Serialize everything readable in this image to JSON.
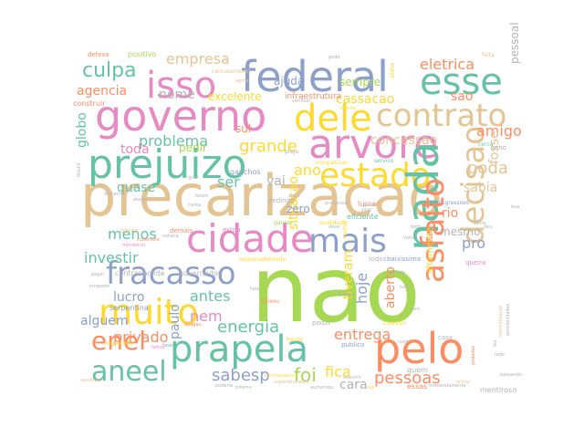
{
  "palette": {
    "pink": "#e78ac3",
    "blue": "#8da0cb",
    "green": "#66c2a5",
    "orange": "#fc8d62",
    "yellow": "#ffd92f",
    "lime": "#a6d854",
    "tan": "#e5c494",
    "grey": "#b3b3b3"
  },
  "words": [
    {
      "text": "nao",
      "color": "lime"
    },
    {
      "text": "precarizacao",
      "color": "tan"
    },
    {
      "text": "federal",
      "color": "blue"
    },
    {
      "text": "governo",
      "color": "pink"
    },
    {
      "text": "arvore",
      "color": "pink"
    },
    {
      "text": "prejuizo",
      "color": "green"
    },
    {
      "text": "dele",
      "color": "yellow"
    },
    {
      "text": "cidade",
      "color": "pink"
    },
    {
      "text": "isso",
      "color": "pink"
    },
    {
      "text": "esse",
      "color": "green"
    },
    {
      "text": "contrato",
      "color": "tan"
    },
    {
      "text": "estado",
      "color": "yellow"
    },
    {
      "text": "nada",
      "color": "green"
    },
    {
      "text": "fracasso",
      "color": "blue"
    },
    {
      "text": "prapela",
      "color": "green"
    },
    {
      "text": "muito",
      "color": "yellow"
    },
    {
      "text": "pelo",
      "color": "orange"
    },
    {
      "text": "mais",
      "color": "blue"
    },
    {
      "text": "decisao",
      "color": "tan"
    },
    {
      "text": "asfalto",
      "color": "orange"
    },
    {
      "text": "aneel",
      "color": "green"
    },
    {
      "text": "enel",
      "color": "orange"
    },
    {
      "text": "culpa",
      "color": "green"
    },
    {
      "text": "empresa",
      "color": "tan"
    },
    {
      "text": "eletrica",
      "color": "orange"
    },
    {
      "text": "agencia",
      "color": "orange"
    },
    {
      "text": "cassacao",
      "color": "yellow"
    },
    {
      "text": "problema",
      "color": "green"
    },
    {
      "text": "grande",
      "color": "yellow"
    },
    {
      "text": "concessao",
      "color": "tan"
    },
    {
      "text": "amigo",
      "color": "orange"
    },
    {
      "text": "energia",
      "color": "green"
    },
    {
      "text": "entrega",
      "color": "orange"
    },
    {
      "text": "privado",
      "color": "orange"
    },
    {
      "text": "sabesp",
      "color": "blue"
    },
    {
      "text": "pessoas",
      "color": "orange"
    },
    {
      "text": "foi",
      "color": "lime"
    },
    {
      "text": "fica",
      "color": "yellow"
    },
    {
      "text": "cara",
      "color": "grey"
    },
    {
      "text": "poda",
      "color": "tan"
    },
    {
      "text": "sabia",
      "color": "tan"
    },
    {
      "text": "fosse",
      "color": "tan"
    },
    {
      "text": "hoje",
      "color": "blue"
    },
    {
      "text": "aberto",
      "color": "orange"
    },
    {
      "text": "tiveram",
      "color": "yellow"
    },
    {
      "text": "situacao",
      "color": "yellow"
    },
    {
      "text": "lucro",
      "color": "blue"
    },
    {
      "text": "antes",
      "color": "green"
    },
    {
      "text": "nem",
      "color": "pink"
    },
    {
      "text": "alguem",
      "color": "blue"
    },
    {
      "text": "investir",
      "color": "green"
    },
    {
      "text": "menos",
      "color": "green"
    },
    {
      "text": "paulo",
      "color": "blue"
    },
    {
      "text": "globo",
      "color": "green"
    },
    {
      "text": "toda",
      "color": "pink"
    },
    {
      "text": "quase",
      "color": "green"
    },
    {
      "text": "vai",
      "color": "grey"
    },
    {
      "text": "ser",
      "color": "green"
    },
    {
      "text": "ano",
      "color": "yellow"
    },
    {
      "text": "nome",
      "color": "grey"
    },
    {
      "text": "excelente",
      "color": "yellow"
    },
    {
      "text": "ajuda",
      "color": "blue"
    },
    {
      "text": "sempre",
      "color": "lime"
    },
    {
      "text": "sao",
      "color": "orange"
    },
    {
      "text": "rio",
      "color": "orange"
    },
    {
      "text": "pro",
      "color": "blue"
    },
    {
      "text": "mesmo",
      "color": "grey"
    },
    {
      "text": "zero",
      "color": "blue"
    },
    {
      "text": "pessoal",
      "color": "grey"
    },
    {
      "text": "sul",
      "color": "orange"
    },
    {
      "text": "pedir",
      "color": "lime"
    },
    {
      "text": "infraestrutura",
      "color": "orange"
    },
    {
      "text": "positivo",
      "color": "lime"
    },
    {
      "text": "defesa",
      "color": "orange"
    },
    {
      "text": "construir",
      "color": "orange"
    },
    {
      "text": "gauchos",
      "color": "blue"
    },
    {
      "text": "altamente",
      "color": "yellow"
    },
    {
      "text": "contrapartida",
      "color": "grey"
    },
    {
      "text": "governador",
      "color": "grey"
    },
    {
      "text": "serpentina",
      "color": "blue"
    },
    {
      "text": "mentiroso",
      "color": "grey"
    },
    {
      "text": "essas",
      "color": "orange"
    },
    {
      "text": "quem",
      "color": "grey"
    },
    {
      "text": "lucrar",
      "color": "orange"
    },
    {
      "text": "eficiente",
      "color": "green"
    },
    {
      "text": "competicao",
      "color": "yellow"
    },
    {
      "text": "servico",
      "color": "green"
    },
    {
      "text": "podar",
      "color": "grey"
    },
    {
      "text": "publico",
      "color": "blue"
    },
    {
      "text": "todos",
      "color": "grey"
    },
    {
      "text": "baixissima",
      "color": "blue"
    },
    {
      "text": "responsabilidade",
      "color": "yellow"
    },
    {
      "text": "queira",
      "color": "pink"
    },
    {
      "text": "acho",
      "color": "grey"
    },
    {
      "text": "cerca",
      "color": "green"
    },
    {
      "text": "pedindo",
      "color": "grey"
    },
    {
      "text": "estou",
      "color": "pink"
    },
    {
      "text": "obras",
      "color": "tan"
    },
    {
      "text": "demais",
      "color": "orange"
    },
    {
      "text": "cancelamento",
      "color": "tan"
    },
    {
      "text": "alma",
      "color": "yellow"
    },
    {
      "text": "feita",
      "color": "tan"
    },
    {
      "text": "qualidade",
      "color": "yellow"
    },
    {
      "text": "muro",
      "color": "grey"
    },
    {
      "text": "engracado",
      "color": "yellow"
    },
    {
      "text": "ganhar",
      "color": "lime"
    },
    {
      "text": "causou",
      "color": "yellow"
    },
    {
      "text": "frente",
      "color": "yellow"
    },
    {
      "text": "inferno",
      "color": "grey"
    },
    {
      "text": "dante",
      "color": "grey"
    },
    {
      "text": "insano",
      "color": "orange"
    },
    {
      "text": "melhor",
      "color": "yellow"
    },
    {
      "text": "pior",
      "color": "grey"
    },
    {
      "text": "transgressoes",
      "color": "blue"
    },
    {
      "text": "deixou",
      "color": "orange"
    },
    {
      "text": "outros",
      "color": "grey"
    },
    {
      "text": "passo",
      "color": "grey"
    },
    {
      "text": "apagao",
      "color": "orange"
    },
    {
      "text": "teve",
      "color": "blue"
    },
    {
      "text": "verificar",
      "color": "grey"
    },
    {
      "text": "chucho",
      "color": "yellow"
    },
    {
      "text": "agora",
      "color": "tan"
    },
    {
      "text": "pode",
      "color": "grey"
    },
    {
      "text": "cobertura",
      "color": "orange"
    },
    {
      "text": "ministerio",
      "color": "pink"
    },
    {
      "text": "saudavel",
      "color": "tan"
    },
    {
      "text": "setor",
      "color": "grey"
    },
    {
      "text": "casa",
      "color": "grey"
    },
    {
      "text": "faltou",
      "color": "pink"
    },
    {
      "text": "reprivatizacao",
      "color": "tan"
    },
    {
      "text": "poderia",
      "color": "grey"
    },
    {
      "text": "superfaturados",
      "color": "tan"
    },
    {
      "text": "aumentou",
      "color": "grey"
    },
    {
      "text": "podadas",
      "color": "orange"
    },
    {
      "text": "incompetencia",
      "color": "yellow"
    },
    {
      "text": "entrar",
      "color": "tan"
    },
    {
      "text": "rua",
      "color": "yellow"
    },
    {
      "text": "tremendamente",
      "color": "grey"
    },
    {
      "text": "possibilidades",
      "color": "grey"
    },
    {
      "text": "fez",
      "color": "grey"
    },
    {
      "text": "passando",
      "color": "grey"
    },
    {
      "text": "votaria",
      "color": "grey"
    },
    {
      "text": "preju",
      "color": "grey"
    },
    {
      "text": "dinheiro",
      "color": "grey"
    },
    {
      "text": "atacar",
      "color": "grey"
    },
    {
      "text": "falam",
      "color": "grey"
    },
    {
      "text": "conta",
      "color": "grey"
    },
    {
      "text": "precarizou",
      "color": "grey"
    },
    {
      "text": "deu",
      "color": "grey"
    },
    {
      "text": "boa",
      "color": "grey"
    },
    {
      "text": "bem",
      "color": "grey"
    },
    {
      "text": "deve",
      "color": "grey"
    },
    {
      "text": "volta",
      "color": "grey"
    },
    {
      "text": "pagar",
      "color": "grey"
    },
    {
      "text": "ninguem",
      "color": "grey"
    },
    {
      "text": "errado",
      "color": "grey"
    },
    {
      "text": "tudo",
      "color": "grey"
    },
    {
      "text": "custo",
      "color": "grey"
    },
    {
      "text": "lado",
      "color": "grey"
    },
    {
      "text": "assumir",
      "color": "grey"
    },
    {
      "text": "falar",
      "color": "grey"
    },
    {
      "text": "quer",
      "color": "grey"
    },
    {
      "text": "tem",
      "color": "grey"
    }
  ]
}
